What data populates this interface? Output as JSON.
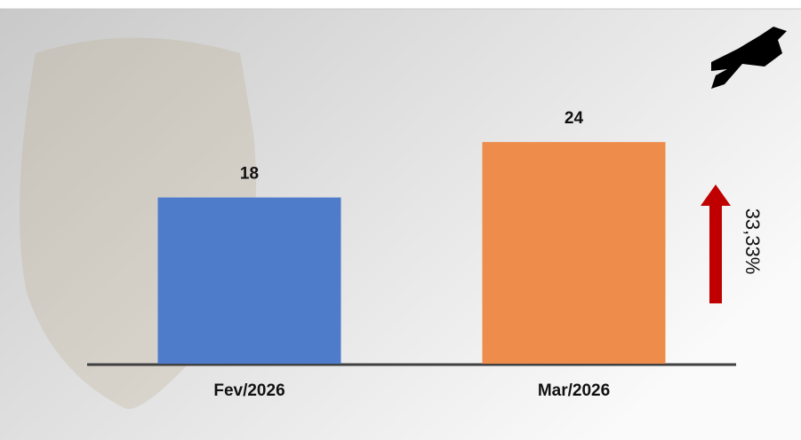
{
  "chart_data": {
    "type": "bar",
    "categories": [
      "Fev/2026",
      "Mar/2026"
    ],
    "values": [
      18,
      24
    ],
    "colors": [
      "#4f7bcb",
      "#ee8c4b"
    ],
    "ylim": [
      0,
      30
    ],
    "annotation": "33,33%",
    "arrow_color": "#c00000"
  }
}
